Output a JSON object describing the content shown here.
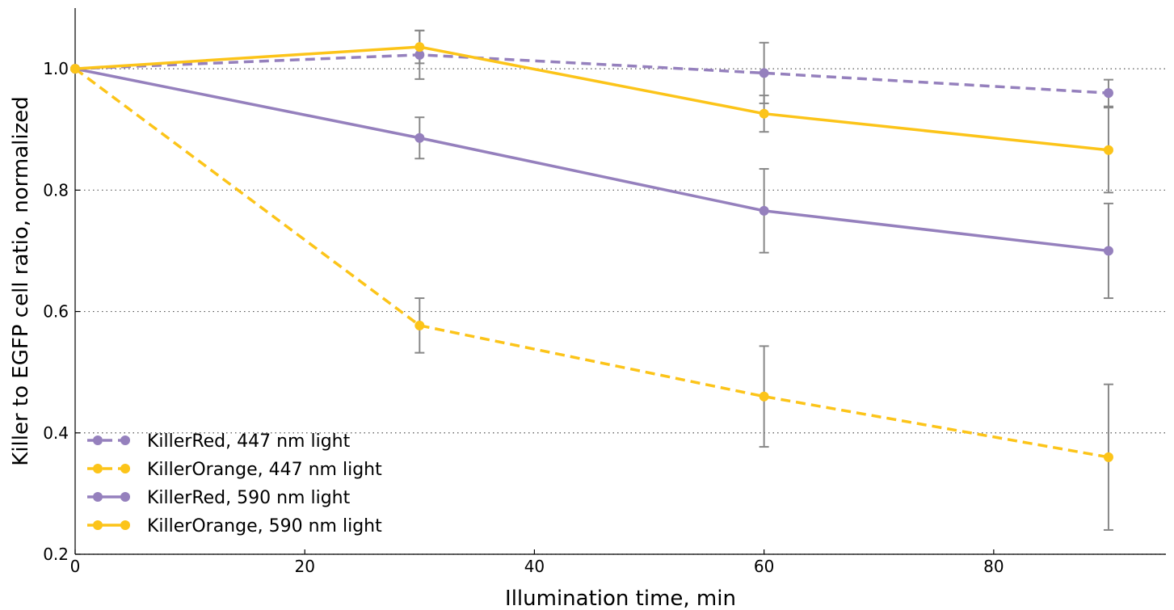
{
  "chart_data": {
    "type": "line",
    "title": "",
    "xlabel": "Illumination time, min",
    "ylabel": "Killer to EGFP cell ratio, normalized",
    "xlim": [
      0,
      95
    ],
    "ylim": [
      0.2,
      1.1
    ],
    "xticks": [
      0,
      20,
      40,
      60,
      80
    ],
    "yticks": [
      0.2,
      0.4,
      0.6,
      0.8,
      1.0
    ],
    "xtick_labels": [
      "0",
      "20",
      "40",
      "60",
      "80"
    ],
    "ytick_labels": [
      "0.2",
      "0.4",
      "0.6",
      "0.8",
      "1.0"
    ],
    "grid": "horizontal dotted",
    "legend_position": "bottom-left",
    "error_bar_color": "#888888",
    "x": [
      0,
      30,
      60,
      90
    ],
    "series": [
      {
        "name": "KillerRed, 447 nm light",
        "color": "#9580bd",
        "style": "dashed",
        "values": [
          1.0,
          1.023,
          0.993,
          0.96
        ],
        "errors": [
          0,
          0.04,
          0.05,
          0.022
        ]
      },
      {
        "name": "KillerOrange, 447 nm light",
        "color": "#fcc419",
        "style": "dashed",
        "values": [
          1.0,
          0.577,
          0.46,
          0.36
        ],
        "errors": [
          0,
          0.045,
          0.083,
          0.12
        ]
      },
      {
        "name": "KillerRed, 590 nm light",
        "color": "#9580bd",
        "style": "solid",
        "values": [
          1.0,
          0.886,
          0.766,
          0.7
        ],
        "errors": [
          0,
          0.034,
          0.069,
          0.078
        ]
      },
      {
        "name": "KillerOrange, 590 nm light",
        "color": "#fcc419",
        "style": "solid",
        "values": [
          1.0,
          1.036,
          0.926,
          0.866
        ],
        "errors": [
          0,
          0.027,
          0.03,
          0.07
        ]
      }
    ]
  }
}
